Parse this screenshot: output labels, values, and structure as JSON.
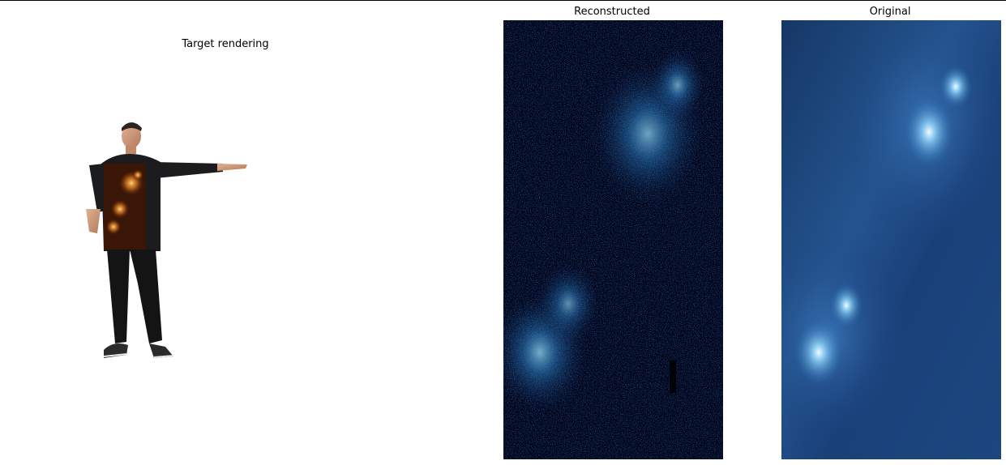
{
  "panels": {
    "target": {
      "title": "Target rendering"
    },
    "reconstructed": {
      "title": "Reconstructed"
    },
    "original": {
      "title": "Original"
    }
  },
  "colors": {
    "frame": "#000000",
    "background": "#ffffff",
    "recon_base": "#03051a",
    "recon_glow": "#7fd9ff",
    "orig_base": "#1b3f74",
    "orig_glow": "#e6fbff",
    "texture_base": "#3a1606",
    "texture_glow": "#ffb64a"
  }
}
